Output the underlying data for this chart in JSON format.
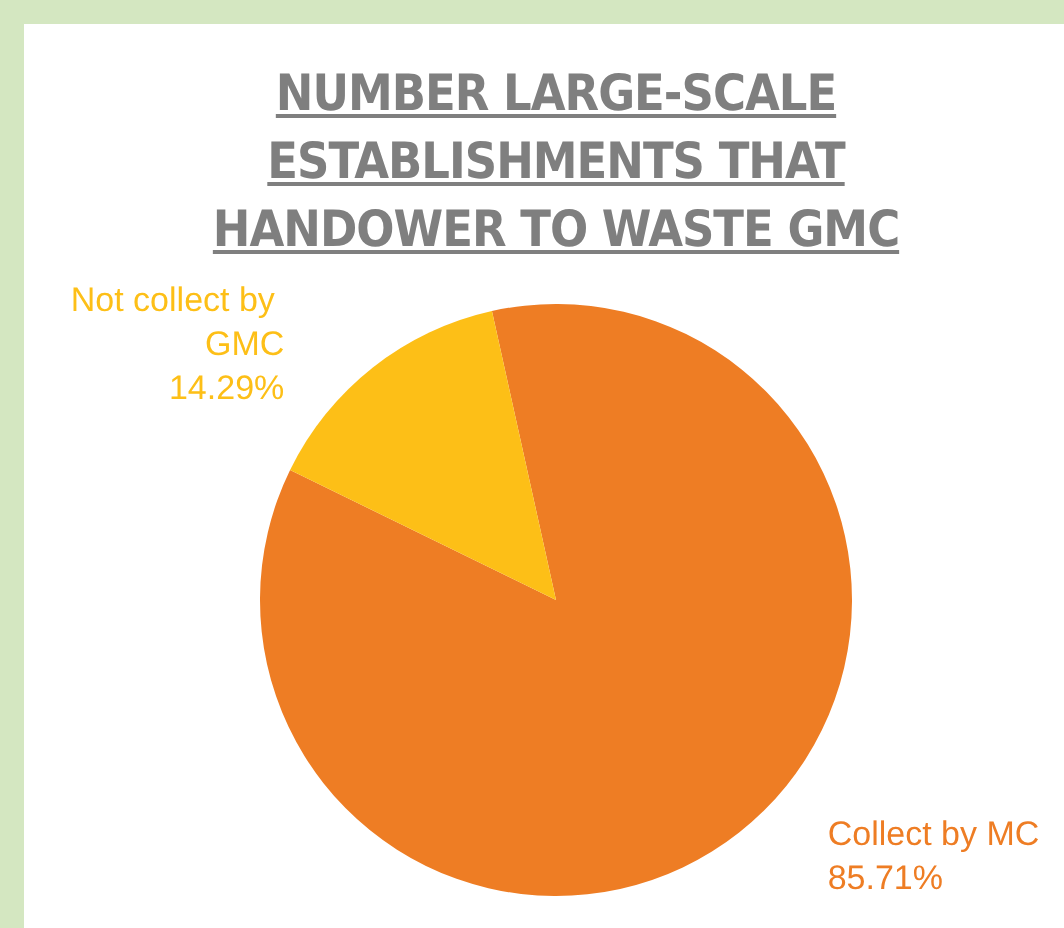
{
  "chart_data": {
    "type": "pie",
    "title": "NUMBER LARGE-SCALE ESTABLISHMENTS THAT HANDOWER TO WASTE GMC",
    "categories": [
      "Not collect by GMC",
      "Collect by MC"
    ],
    "values": [
      14.29,
      85.71
    ],
    "value_labels": [
      "14.29%",
      "85.71%"
    ],
    "colors": [
      "#fdbf17",
      "#ee7d24"
    ],
    "legend": false
  }
}
